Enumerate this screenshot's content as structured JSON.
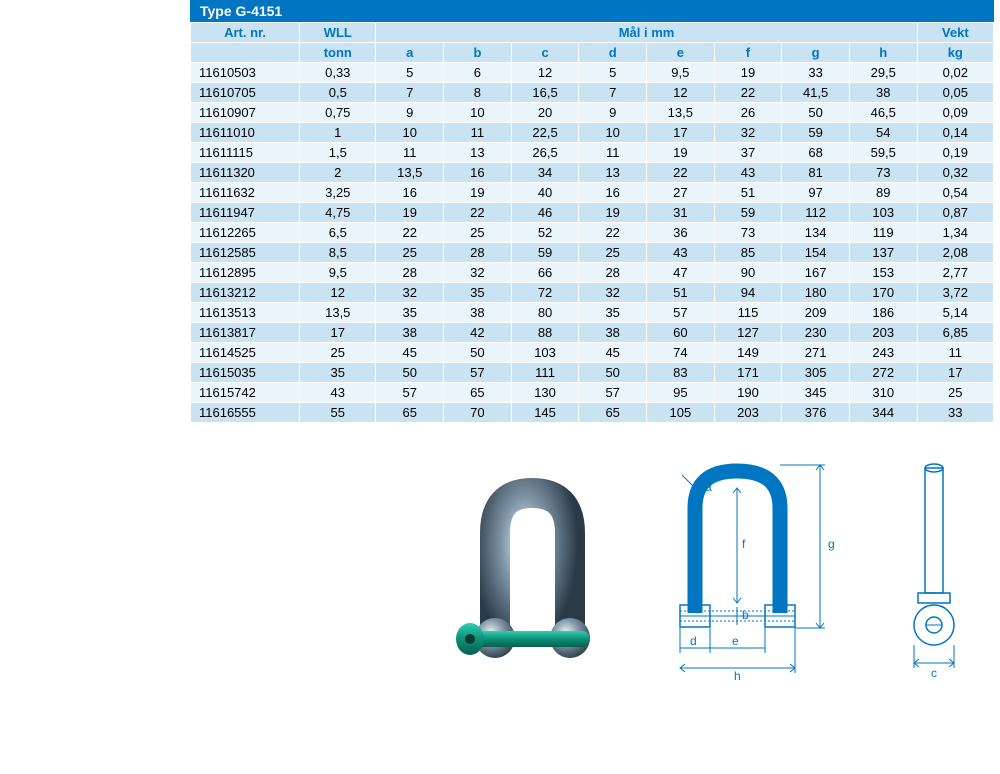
{
  "title": "Type G-4151",
  "colors": {
    "header_bg": "#0075c2",
    "header_text": "#ffffff",
    "th_bg": "#c9e3f2",
    "th_text": "#0075c2",
    "row_odd": "#eaf4fb",
    "row_even": "#c9e3f2",
    "border": "#ffffff",
    "dim_color": "#0075c2"
  },
  "headers": {
    "art": "Art. nr.",
    "wll_top": "WLL",
    "wll_bot": "tonn",
    "dims": "Mål i mm",
    "a": "a",
    "b": "b",
    "c": "c",
    "d": "d",
    "e": "e",
    "f": "f",
    "g": "g",
    "h": "h",
    "weight_top": "Vekt",
    "weight_bot": "kg"
  },
  "diagram_labels": {
    "a": "a",
    "b": "b",
    "c": "c",
    "d": "d",
    "e": "e",
    "f": "f",
    "g": "g",
    "h": "h"
  },
  "rows": [
    {
      "art": "11610503",
      "wll": "0,33",
      "a": "5",
      "b": "6",
      "c": "12",
      "d": "5",
      "e": "9,5",
      "f": "19",
      "g": "33",
      "h": "29,5",
      "wt": "0,02"
    },
    {
      "art": "11610705",
      "wll": "0,5",
      "a": "7",
      "b": "8",
      "c": "16,5",
      "d": "7",
      "e": "12",
      "f": "22",
      "g": "41,5",
      "h": "38",
      "wt": "0,05"
    },
    {
      "art": "11610907",
      "wll": "0,75",
      "a": "9",
      "b": "10",
      "c": "20",
      "d": "9",
      "e": "13,5",
      "f": "26",
      "g": "50",
      "h": "46,5",
      "wt": "0,09"
    },
    {
      "art": "11611010",
      "wll": "1",
      "a": "10",
      "b": "11",
      "c": "22,5",
      "d": "10",
      "e": "17",
      "f": "32",
      "g": "59",
      "h": "54",
      "wt": "0,14"
    },
    {
      "art": "11611115",
      "wll": "1,5",
      "a": "11",
      "b": "13",
      "c": "26,5",
      "d": "11",
      "e": "19",
      "f": "37",
      "g": "68",
      "h": "59,5",
      "wt": "0,19"
    },
    {
      "art": "11611320",
      "wll": "2",
      "a": "13,5",
      "b": "16",
      "c": "34",
      "d": "13",
      "e": "22",
      "f": "43",
      "g": "81",
      "h": "73",
      "wt": "0,32"
    },
    {
      "art": "11611632",
      "wll": "3,25",
      "a": "16",
      "b": "19",
      "c": "40",
      "d": "16",
      "e": "27",
      "f": "51",
      "g": "97",
      "h": "89",
      "wt": "0,54"
    },
    {
      "art": "11611947",
      "wll": "4,75",
      "a": "19",
      "b": "22",
      "c": "46",
      "d": "19",
      "e": "31",
      "f": "59",
      "g": "112",
      "h": "103",
      "wt": "0,87"
    },
    {
      "art": "11612265",
      "wll": "6,5",
      "a": "22",
      "b": "25",
      "c": "52",
      "d": "22",
      "e": "36",
      "f": "73",
      "g": "134",
      "h": "119",
      "wt": "1,34"
    },
    {
      "art": "11612585",
      "wll": "8,5",
      "a": "25",
      "b": "28",
      "c": "59",
      "d": "25",
      "e": "43",
      "f": "85",
      "g": "154",
      "h": "137",
      "wt": "2,08"
    },
    {
      "art": "11612895",
      "wll": "9,5",
      "a": "28",
      "b": "32",
      "c": "66",
      "d": "28",
      "e": "47",
      "f": "90",
      "g": "167",
      "h": "153",
      "wt": "2,77"
    },
    {
      "art": "11613212",
      "wll": "12",
      "a": "32",
      "b": "35",
      "c": "72",
      "d": "32",
      "e": "51",
      "f": "94",
      "g": "180",
      "h": "170",
      "wt": "3,72"
    },
    {
      "art": "11613513",
      "wll": "13,5",
      "a": "35",
      "b": "38",
      "c": "80",
      "d": "35",
      "e": "57",
      "f": "115",
      "g": "209",
      "h": "186",
      "wt": "5,14"
    },
    {
      "art": "11613817",
      "wll": "17",
      "a": "38",
      "b": "42",
      "c": "88",
      "d": "38",
      "e": "60",
      "f": "127",
      "g": "230",
      "h": "203",
      "wt": "6,85"
    },
    {
      "art": "11614525",
      "wll": "25",
      "a": "45",
      "b": "50",
      "c": "103",
      "d": "45",
      "e": "74",
      "f": "149",
      "g": "271",
      "h": "243",
      "wt": "11"
    },
    {
      "art": "11615035",
      "wll": "35",
      "a": "50",
      "b": "57",
      "c": "111",
      "d": "50",
      "e": "83",
      "f": "171",
      "g": "305",
      "h": "272",
      "wt": "17"
    },
    {
      "art": "11615742",
      "wll": "43",
      "a": "57",
      "b": "65",
      "c": "130",
      "d": "57",
      "e": "95",
      "f": "190",
      "g": "345",
      "h": "310",
      "wt": "25"
    },
    {
      "art": "11616555",
      "wll": "55",
      "a": "65",
      "b": "70",
      "c": "145",
      "d": "65",
      "e": "105",
      "f": "203",
      "g": "376",
      "h": "344",
      "wt": "33"
    }
  ]
}
